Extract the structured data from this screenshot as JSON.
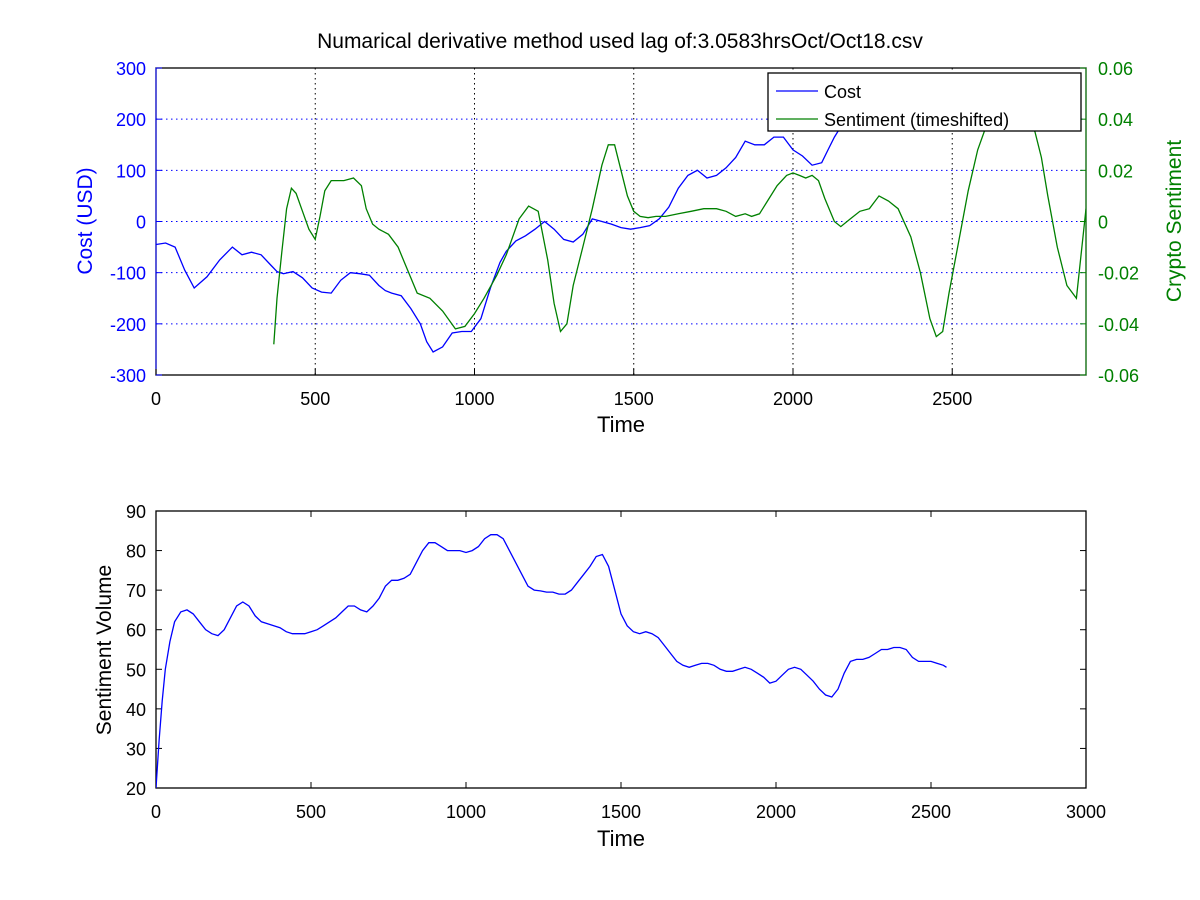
{
  "chart_data": [
    {
      "type": "line",
      "title": "Numarical derivative method used lag of:3.0583hrsOct/Oct18.csv",
      "xlabel": "Time",
      "ylabel": "Cost (USD)",
      "ylabel_right": "Crypto Sentiment",
      "xlim": [
        0,
        2920
      ],
      "ylim": [
        -300,
        300
      ],
      "ylim_right": [
        -0.06,
        0.06
      ],
      "x_ticks": [
        "0",
        "500",
        "1000",
        "1500",
        "2000",
        "2500"
      ],
      "y_ticks": [
        "-300",
        "-200",
        "-100",
        "0",
        "100",
        "200",
        "300"
      ],
      "y_ticks_right": [
        "-0.06",
        "-0.04",
        "-0.02",
        "0",
        "0.02",
        "0.04",
        "0.06"
      ],
      "grid": true,
      "legend": "top-right",
      "left_axis_color": "#0000ff",
      "right_axis_color": "#008000",
      "series": [
        {
          "name": "Cost",
          "axis": "left",
          "color": "#0000ff",
          "x": [
            0,
            30,
            60,
            90,
            120,
            160,
            200,
            240,
            270,
            300,
            330,
            360,
            380,
            400,
            430,
            460,
            490,
            520,
            550,
            580,
            610,
            640,
            670,
            700,
            720,
            740,
            770,
            800,
            830,
            850,
            870,
            900,
            930,
            960,
            990,
            1020,
            1050,
            1080,
            1100,
            1130,
            1160,
            1190,
            1220,
            1250,
            1280,
            1310,
            1340,
            1370,
            1400,
            1430,
            1460,
            1490,
            1520,
            1550,
            1580,
            1610,
            1640,
            1670,
            1700,
            1730,
            1760,
            1790,
            1820,
            1850,
            1880,
            1910,
            1940,
            1970,
            2000,
            2030,
            2060,
            2090,
            2110,
            2130,
            2150,
            2175
          ],
          "values": [
            -45,
            -42,
            -50,
            -95,
            -130,
            -108,
            -75,
            -50,
            -65,
            -60,
            -65,
            -85,
            -98,
            -102,
            -98,
            -110,
            -130,
            -138,
            -140,
            -115,
            -100,
            -102,
            -105,
            -125,
            -135,
            -140,
            -145,
            -170,
            -200,
            -235,
            -255,
            -245,
            -218,
            -215,
            -215,
            -190,
            -130,
            -80,
            -58,
            -38,
            -28,
            -15,
            0,
            -15,
            -35,
            -40,
            -25,
            5,
            0,
            -5,
            -12,
            -15,
            -12,
            -8,
            5,
            28,
            65,
            90,
            100,
            85,
            90,
            105,
            125,
            157,
            150,
            150,
            165,
            165,
            140,
            128,
            110,
            115,
            140,
            165,
            185,
            200
          ]
        },
        {
          "name": "Sentiment (timeshifted)",
          "axis": "right",
          "color": "#008000",
          "x": [
            370,
            380,
            395,
            410,
            425,
            440,
            460,
            480,
            500,
            515,
            530,
            550,
            570,
            590,
            620,
            645,
            660,
            680,
            700,
            730,
            760,
            780,
            800,
            820,
            860,
            900,
            940,
            970,
            1000,
            1030,
            1070,
            1100,
            1140,
            1170,
            1200,
            1230,
            1250,
            1270,
            1290,
            1310,
            1340,
            1370,
            1400,
            1420,
            1440,
            1460,
            1480,
            1500,
            1520,
            1545,
            1570,
            1600,
            1640,
            1680,
            1720,
            1760,
            1790,
            1820,
            1850,
            1870,
            1895,
            1920,
            1950,
            1980,
            2000,
            2020,
            2040,
            2060,
            2080,
            2100,
            2130,
            2150,
            2180,
            2210,
            2240,
            2270,
            2300,
            2330,
            2370,
            2400,
            2430,
            2450,
            2470,
            2490,
            2520,
            2550,
            2580,
            2600,
            2620,
            2640,
            2660,
            2680,
            2700,
            2720,
            2740,
            2760,
            2780,
            2800,
            2830,
            2860,
            2890,
            2920
          ],
          "values": [
            -0.048,
            -0.03,
            -0.012,
            0.005,
            0.013,
            0.011,
            0.004,
            -0.003,
            -0.007,
            0.002,
            0.012,
            0.016,
            0.016,
            0.016,
            0.017,
            0.014,
            0.005,
            -0.001,
            -0.003,
            -0.005,
            -0.01,
            -0.016,
            -0.022,
            -0.028,
            -0.03,
            -0.035,
            -0.042,
            -0.041,
            -0.036,
            -0.03,
            -0.021,
            -0.013,
            0.001,
            0.006,
            0.004,
            -0.015,
            -0.032,
            -0.043,
            -0.04,
            -0.025,
            -0.01,
            0.005,
            0.022,
            0.03,
            0.03,
            0.02,
            0.01,
            0.004,
            0.002,
            0.0015,
            0.002,
            0.002,
            0.003,
            0.004,
            0.005,
            0.005,
            0.004,
            0.002,
            0.003,
            0.002,
            0.003,
            0.008,
            0.014,
            0.018,
            0.019,
            0.018,
            0.017,
            0.018,
            0.016,
            0.009,
            0.0,
            -0.002,
            0.001,
            0.004,
            0.005,
            0.01,
            0.008,
            0.005,
            -0.006,
            -0.02,
            -0.038,
            -0.045,
            -0.043,
            -0.028,
            -0.008,
            0.012,
            0.028,
            0.035,
            0.04,
            0.042,
            0.045,
            0.047,
            0.045,
            0.042,
            0.04,
            0.035,
            0.025,
            0.01,
            -0.01,
            -0.025,
            -0.03,
            0.005
          ]
        }
      ]
    },
    {
      "type": "line",
      "title": "",
      "xlabel": "Time",
      "ylabel": "Sentiment Volume",
      "xlim": [
        0,
        3000
      ],
      "ylim": [
        20,
        90
      ],
      "x_ticks": [
        "0",
        "500",
        "1000",
        "1500",
        "2000",
        "2500",
        "3000"
      ],
      "y_ticks": [
        "20",
        "30",
        "40",
        "50",
        "60",
        "70",
        "80",
        "90"
      ],
      "grid": false,
      "series": [
        {
          "color": "#0000ff",
          "x": [
            0,
            10,
            20,
            30,
            45,
            60,
            80,
            100,
            120,
            140,
            160,
            180,
            200,
            220,
            240,
            260,
            280,
            300,
            320,
            340,
            360,
            380,
            400,
            420,
            440,
            460,
            480,
            500,
            520,
            540,
            560,
            580,
            600,
            620,
            640,
            660,
            680,
            700,
            720,
            740,
            760,
            780,
            800,
            820,
            840,
            860,
            880,
            900,
            920,
            940,
            960,
            980,
            1000,
            1020,
            1040,
            1060,
            1080,
            1100,
            1120,
            1140,
            1160,
            1180,
            1200,
            1220,
            1240,
            1260,
            1280,
            1300,
            1320,
            1340,
            1360,
            1380,
            1400,
            1420,
            1440,
            1460,
            1480,
            1500,
            1520,
            1540,
            1560,
            1580,
            1600,
            1620,
            1640,
            1660,
            1680,
            1700,
            1720,
            1740,
            1760,
            1780,
            1800,
            1820,
            1840,
            1860,
            1880,
            1900,
            1920,
            1940,
            1960,
            1980,
            2000,
            2020,
            2040,
            2060,
            2080,
            2100,
            2120,
            2140,
            2160,
            2180,
            2200,
            2220,
            2240,
            2260,
            2280,
            2300,
            2320,
            2340,
            2360,
            2380,
            2400,
            2420,
            2440,
            2460,
            2480,
            2500,
            2520,
            2540,
            2550
          ],
          "values": [
            20,
            32,
            42,
            50,
            57,
            62,
            64.5,
            65,
            64,
            62,
            60,
            59,
            58.5,
            60,
            63,
            66,
            67,
            66,
            63.5,
            62,
            61.5,
            61,
            60.5,
            59.5,
            59,
            59,
            59,
            59.5,
            60,
            61,
            62,
            63,
            64.5,
            66,
            66,
            65,
            64.5,
            66,
            68,
            71,
            72.5,
            72.5,
            73,
            74,
            77,
            80,
            82,
            82,
            81,
            80,
            80,
            80,
            79.5,
            80,
            81,
            83,
            84,
            84,
            83,
            80,
            77,
            74,
            71,
            70,
            69.8,
            69.5,
            69.5,
            69,
            69,
            70,
            72,
            74,
            76,
            78.5,
            79,
            76,
            70,
            64,
            61,
            59.5,
            59,
            59.5,
            59,
            58,
            56,
            54,
            52,
            51,
            50.5,
            51,
            51.5,
            51.5,
            51,
            50,
            49.5,
            49.5,
            50,
            50.5,
            50,
            49,
            48,
            46.5,
            47,
            48.5,
            50,
            50.5,
            50,
            48.5,
            47,
            45,
            43.5,
            43,
            45,
            49,
            52,
            52.5,
            52.5,
            53,
            54,
            55,
            55,
            55.5,
            55.5,
            55,
            53,
            52,
            52,
            52,
            51.5,
            51,
            50.5
          ]
        }
      ]
    }
  ]
}
